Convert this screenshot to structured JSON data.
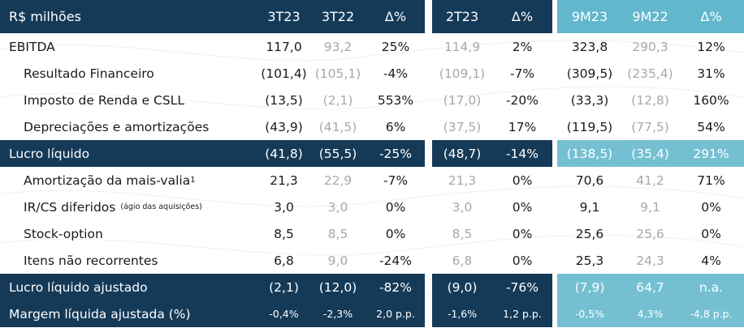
{
  "headers": {
    "label": "R$ milhões",
    "cols": [
      "3T23",
      "3T22",
      "Δ%",
      "2T23",
      "Δ%",
      "9M23",
      "9M22",
      "Δ%"
    ]
  },
  "rows": [
    {
      "label": "EBITDA",
      "note": "",
      "sup": "",
      "type": "title",
      "values": [
        "117,0",
        "93,2",
        "25%",
        "114,9",
        "2%",
        "323,8",
        "290,3",
        "12%"
      ]
    },
    {
      "label": "Resultado Financeiro",
      "note": "",
      "sup": "",
      "type": "sub",
      "values": [
        "(101,4)",
        "(105,1)",
        "-4%",
        "(109,1)",
        "-7%",
        "(309,5)",
        "(235,4)",
        "31%"
      ]
    },
    {
      "label": "Imposto de Renda e CSLL",
      "note": "",
      "sup": "",
      "type": "sub",
      "values": [
        "(13,5)",
        "(2,1)",
        "553%",
        "(17,0)",
        "-20%",
        "(33,3)",
        "(12,8)",
        "160%"
      ]
    },
    {
      "label": "Depreciações e amortizações",
      "note": "",
      "sup": "",
      "type": "sub",
      "values": [
        "(43,9)",
        "(41,5)",
        "6%",
        "(37,5)",
        "17%",
        "(119,5)",
        "(77,5)",
        "54%"
      ]
    },
    {
      "label": "Lucro líquido",
      "note": "",
      "sup": "",
      "type": "total",
      "values": [
        "(41,8)",
        "(55,5)",
        "-25%",
        "(48,7)",
        "-14%",
        "(138,5)",
        "(35,4)",
        "291%"
      ]
    },
    {
      "label": "Amortização da mais-valia",
      "note": "",
      "sup": "1",
      "type": "sub",
      "values": [
        "21,3",
        "22,9",
        "-7%",
        "21,3",
        "0%",
        "70,6",
        "41,2",
        "71%"
      ]
    },
    {
      "label": "IR/CS diferidos",
      "note": "(ágio das aquisições)",
      "sup": "",
      "type": "sub",
      "values": [
        "3,0",
        "3,0",
        "0%",
        "3,0",
        "0%",
        "9,1",
        "9,1",
        "0%"
      ]
    },
    {
      "label": "Stock-option",
      "note": "",
      "sup": "",
      "type": "sub",
      "values": [
        "8,5",
        "8,5",
        "0%",
        "8,5",
        "0%",
        "25,6",
        "25,6",
        "0%"
      ]
    },
    {
      "label": "Itens não recorrentes",
      "note": "",
      "sup": "",
      "type": "sub",
      "values": [
        "6,8",
        "9,0",
        "-24%",
        "6,8",
        "0%",
        "25,3",
        "24,3",
        "4%"
      ]
    },
    {
      "label": "Lucro líquido ajustado",
      "note": "",
      "sup": "",
      "type": "total",
      "values": [
        "(2,1)",
        "(12,0)",
        "-82%",
        "(9,0)",
        "-76%",
        "(7,9)",
        "64,7",
        "n.a."
      ]
    },
    {
      "label": "Margem líquida ajustada (%)",
      "note": "",
      "sup": "",
      "type": "total",
      "values": [
        "-0,4%",
        "-2,3%",
        "2,0 p.p.",
        "-1,6%",
        "1,2 p.p.",
        "-0,5%",
        "4,3%",
        "-4,8 p.p."
      ]
    }
  ],
  "colors": {
    "navy": "#153a58",
    "cyan_header": "#62b7cc",
    "cyan_total": "#74c0d2",
    "muted_text": "#a8a8a8"
  }
}
